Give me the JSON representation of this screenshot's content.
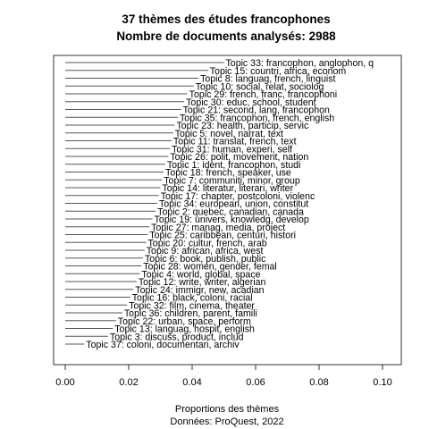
{
  "chart_data": {
    "type": "bar",
    "orientation": "horizontal",
    "title": "37 thèmes des études francophones",
    "subtitle": "Nombre de documents analysés: 2988",
    "xlabel": "Proportions des thèmes",
    "caption": "Données: ProQuest, 2022",
    "xlim": [
      0,
      0.103
    ],
    "xticks": [
      0.0,
      0.02,
      0.04,
      0.06,
      0.08,
      0.1
    ],
    "xtick_labels": [
      "0.00",
      "0.02",
      "0.04",
      "0.06",
      "0.08",
      "0.10"
    ],
    "grid": false,
    "categories": [
      "Topic 33: francophon, anglophon, q",
      "Topic 15: countri, africa, econom",
      "Topic 8: languag, french, linguist",
      "Topic 10: social, relat, sociolog",
      "Topic 29: french, franc, francophoni",
      "Topic 30: educ, school, student",
      "Topic 21: second, lang, francophon",
      "Topic 35: francophon, french, english",
      "Topic 23: health, particip, servic",
      "Topic 5: novel, narrat, text",
      "Topic 11: translat, french, text",
      "Topic 31: human, experi, self",
      "Topic 26: polit, movement, nation",
      "Topic 1: ident, francophon, studi",
      "Topic 18: french, speaker, use",
      "Topic 7: communiti, minor, group",
      "Topic 14: literatur, literari, writer",
      "Topic 17: chapter, postcoloni, violenc",
      "Topic 34: european, union, constitut",
      "Topic 2: quebec, canadian, canada",
      "Topic 19: univers, knowledg, develop",
      "Topic 27: manag, media, project",
      "Topic 25: caribbean, centuri, histori",
      "Topic 20: cultur, french, arab",
      "Topic 9: african, africa, west",
      "Topic 6: book, publish, public",
      "Topic 28: women, gender, femal",
      "Topic 4: world, global, space",
      "Topic 12: write, writer, algerian",
      "Topic 24: immigr, new, acadian",
      "Topic 16: black, coloni, racial",
      "Topic 32: film, cinema, theater",
      "Topic 36: children, parent, famili",
      "Topic 22: urban, space, perform",
      "Topic 13: languag, hospit, english",
      "Topic 3: discuss, product, includ",
      "Topic 37: coloni, documentari, archiv"
    ],
    "values": [
      0.05,
      0.045,
      0.042,
      0.0405,
      0.0385,
      0.0375,
      0.0365,
      0.0355,
      0.0345,
      0.034,
      0.0335,
      0.033,
      0.0325,
      0.0315,
      0.031,
      0.0305,
      0.03,
      0.0295,
      0.029,
      0.0285,
      0.0275,
      0.0265,
      0.026,
      0.0255,
      0.025,
      0.0245,
      0.024,
      0.0235,
      0.0225,
      0.0215,
      0.0205,
      0.0195,
      0.018,
      0.016,
      0.015,
      0.0135,
      0.006
    ],
    "colors": {
      "line": "#555555",
      "axis": "#000000",
      "text": "#000000"
    }
  }
}
